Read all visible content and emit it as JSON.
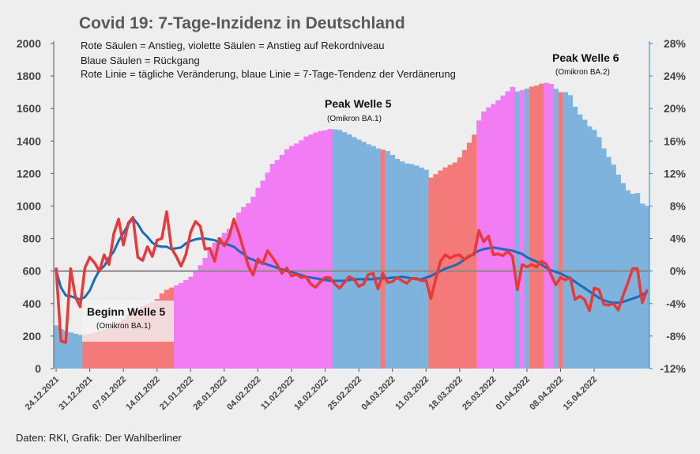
{
  "chart_data": {
    "type": "bar",
    "title": "Covid 19: 7-Tage-Inzidenz in Deutschland",
    "legend_lines": [
      "Rote Säulen = Anstieg, violette Säulen = Anstieg auf Rekordniveau",
      "Blaue Säulen = Rückgang",
      "Rote Linie = tägliche Veränderung, blaue Linie = 7-Tage-Tendenz der Verdänerung"
    ],
    "source": "Daten: RKI, Grafik: Der Wahlberliner",
    "y_left": {
      "min": 0,
      "max": 2000,
      "ticks": [
        0,
        200,
        400,
        600,
        800,
        1000,
        1200,
        1400,
        1600,
        1800,
        2000
      ]
    },
    "y_right": {
      "min": -12,
      "max": 28,
      "ticks": [
        "-12%",
        "-8%",
        "-4%",
        "0%",
        "4%",
        "8%",
        "12%",
        "16%",
        "20%",
        "24%",
        "28%"
      ]
    },
    "x_tick_labels": [
      "24.12.2021",
      "31.12.2021",
      "07.01.2022",
      "14.01.2022",
      "21.01.2022",
      "28.01.2022",
      "04.02.2022",
      "11.02.2022",
      "18.02.2022",
      "25.02.2022",
      "04.03.2022",
      "11.03.2022",
      "18.03.2022",
      "25.03.2022",
      "01.04.2022",
      "08.04.2022",
      "15.04.2022"
    ],
    "colors": {
      "rise": "#f47a79",
      "record": "#f27cf4",
      "fall": "#7eb3dd",
      "daily_line": "#e83838",
      "trend_line": "#1a6bbd",
      "zero_line": "#8a8a8a"
    },
    "series": [
      {
        "name": "7-Tage-Inzidenz",
        "kind": "bars",
        "values": [
          266,
          243,
          231,
          222,
          215,
          207,
          209,
          214,
          221,
          232,
          240,
          253,
          265,
          285,
          305,
          331,
          355,
          375,
          385,
          398,
          409,
          428,
          462,
          485,
          498,
          512,
          526,
          545,
          565,
          598,
          636,
          681,
          733,
          775,
          807,
          835,
          860,
          900,
          960,
          994,
          1017,
          1057,
          1112,
          1156,
          1206,
          1260,
          1284,
          1315,
          1349,
          1370,
          1385,
          1404,
          1427,
          1440,
          1453,
          1462,
          1466,
          1474,
          1472,
          1468,
          1454,
          1441,
          1424,
          1409,
          1395,
          1380,
          1369,
          1354,
          1347,
          1338,
          1314,
          1290,
          1274,
          1262,
          1258,
          1249,
          1237,
          1223,
          1175,
          1196,
          1219,
          1238,
          1254,
          1268,
          1300,
          1345,
          1390,
          1439,
          1526,
          1582,
          1607,
          1628,
          1651,
          1680,
          1706,
          1733,
          1705,
          1714,
          1722,
          1735,
          1741,
          1753,
          1758,
          1752,
          1722,
          1701,
          1701,
          1682,
          1611,
          1563,
          1531,
          1491,
          1468,
          1424,
          1355,
          1302,
          1255,
          1193,
          1141,
          1097,
          1075,
          1080,
          1015,
          1001
        ],
        "categories_kind": [
          "fall",
          "fall",
          "fall",
          "fall",
          "fall",
          "fall",
          "rise",
          "rise",
          "rise",
          "rise",
          "rise",
          "rise",
          "rise",
          "rise",
          "rise",
          "rise",
          "rise",
          "rise",
          "rise",
          "rise",
          "rise",
          "rise",
          "rise",
          "rise",
          "rise",
          "record",
          "record",
          "record",
          "record",
          "record",
          "record",
          "record",
          "record",
          "record",
          "record",
          "record",
          "record",
          "record",
          "record",
          "record",
          "record",
          "record",
          "record",
          "record",
          "record",
          "record",
          "record",
          "record",
          "record",
          "record",
          "record",
          "record",
          "record",
          "record",
          "record",
          "record",
          "record",
          "record",
          "fall",
          "fall",
          "fall",
          "fall",
          "fall",
          "fall",
          "fall",
          "fall",
          "fall",
          "fall",
          "rise",
          "fall",
          "fall",
          "fall",
          "fall",
          "fall",
          "fall",
          "fall",
          "fall",
          "fall",
          "rise",
          "rise",
          "rise",
          "rise",
          "rise",
          "rise",
          "rise",
          "rise",
          "rise",
          "rise",
          "record",
          "record",
          "record",
          "record",
          "record",
          "record",
          "record",
          "record",
          "fall",
          "record",
          "fall",
          "rise",
          "rise",
          "rise",
          "record",
          "record",
          "fall",
          "rise",
          "fall",
          "fall",
          "fall",
          "fall",
          "fall",
          "fall",
          "fall",
          "fall",
          "fall",
          "fall",
          "fall",
          "fall",
          "fall",
          "fall",
          "fall",
          "fall",
          "fall",
          "fall",
          "fall",
          "fall",
          "rise",
          "fall",
          "fall"
        ]
      },
      {
        "name": "tägliche Veränderung",
        "kind": "line",
        "values": [
          0.4,
          -8.6,
          -8.8,
          0.3,
          -3.2,
          -4.4,
          0.4,
          1.7,
          1.0,
          0.0,
          2.0,
          0.8,
          4.6,
          6.4,
          3.2,
          5.9,
          6.6,
          1.7,
          1.3,
          3.0,
          1.8,
          3.8,
          4.0,
          7.3,
          2.8,
          1.8,
          0.6,
          2.0,
          4.8,
          6.1,
          5.5,
          2.7,
          2.8,
          1.2,
          4.0,
          3.1,
          4.2,
          6.4,
          4.7,
          2.7,
          0.6,
          -0.5,
          1.5,
          0.9,
          2.5,
          1.7,
          0.8,
          -0.3,
          0.4,
          -0.6,
          -0.4,
          -0.8,
          -0.7,
          -1.6,
          -2.0,
          -1.3,
          -0.8,
          -0.8,
          -1.6,
          -2.1,
          -1.4,
          -0.7,
          -1.0,
          -1.9,
          -1.6,
          -0.4,
          -0.3,
          -2.2,
          -0.3,
          -1.4,
          -1.3,
          -0.8,
          -1.2,
          -1.5,
          -0.9,
          -0.9,
          -1.2,
          -1.1,
          -3.4,
          -1.0,
          1.2,
          2.0,
          1.6,
          1.9,
          2.0,
          1.4,
          1.9,
          2.0,
          5.0,
          3.6,
          4.3,
          2.0,
          2.1,
          1.9,
          2.4,
          1.8,
          -2.3,
          0.8,
          0.5,
          0.8,
          0.5,
          1.2,
          0.9,
          -0.4,
          -1.7,
          -0.8,
          -1.1,
          -0.8,
          -3.5,
          -3.1,
          -3.5,
          -4.9,
          -2.1,
          -2.3,
          -4.1,
          -4.2,
          -4.0,
          -4.8,
          -3.0,
          -1.5,
          0.3,
          0.3,
          -3.9,
          -2.3
        ]
      },
      {
        "name": "7-Tage-Tendenz",
        "kind": "line",
        "values": [
          0.1,
          -2.0,
          -3.0,
          -3.1,
          -3.3,
          -3.5,
          -3.2,
          -2.4,
          -1.0,
          0.1,
          0.6,
          1.6,
          2.4,
          3.7,
          4.7,
          5.7,
          6.5,
          5.8,
          4.8,
          4.2,
          3.5,
          3.1,
          3.0,
          3.0,
          2.7,
          2.8,
          2.9,
          3.4,
          3.7,
          3.9,
          4.0,
          4.0,
          3.9,
          3.8,
          3.5,
          3.4,
          3.2,
          3.0,
          2.5,
          2.1,
          1.6,
          1.4,
          1.1,
          1.0,
          0.8,
          0.6,
          0.4,
          0.2,
          0.0,
          -0.1,
          -0.3,
          -0.5,
          -0.7,
          -0.8,
          -0.9,
          -1.0,
          -1.1,
          -1.2,
          -1.2,
          -1.2,
          -1.2,
          -1.1,
          -1.0,
          -1.0,
          -1.0,
          -1.0,
          -1.0,
          -0.9,
          -0.9,
          -0.9,
          -0.8,
          -0.8,
          -0.7,
          -0.8,
          -0.9,
          -1.0,
          -1.0,
          -0.8,
          -0.6,
          -0.3,
          0.0,
          0.3,
          0.5,
          0.7,
          1.0,
          1.4,
          1.8,
          2.2,
          2.5,
          2.7,
          2.8,
          2.9,
          2.8,
          2.7,
          2.6,
          2.5,
          2.3,
          2.1,
          1.7,
          1.4,
          1.2,
          0.8,
          0.4,
          0.1,
          -0.1,
          -0.3,
          -0.6,
          -0.9,
          -1.3,
          -1.7,
          -2.1,
          -2.5,
          -2.9,
          -3.3,
          -3.6,
          -3.8,
          -3.9,
          -3.9,
          -3.8,
          -3.6,
          -3.4,
          -3.2,
          -2.9,
          -2.6
        ]
      }
    ],
    "annotations": [
      {
        "head": "Beginn Welle 5",
        "sub": "(Omikron BA.1)"
      },
      {
        "head": "Peak Welle 5",
        "sub": "(Omikron BA.1)"
      },
      {
        "head": "Peak Welle 6",
        "sub": "(Omikron BA.2)"
      }
    ]
  }
}
